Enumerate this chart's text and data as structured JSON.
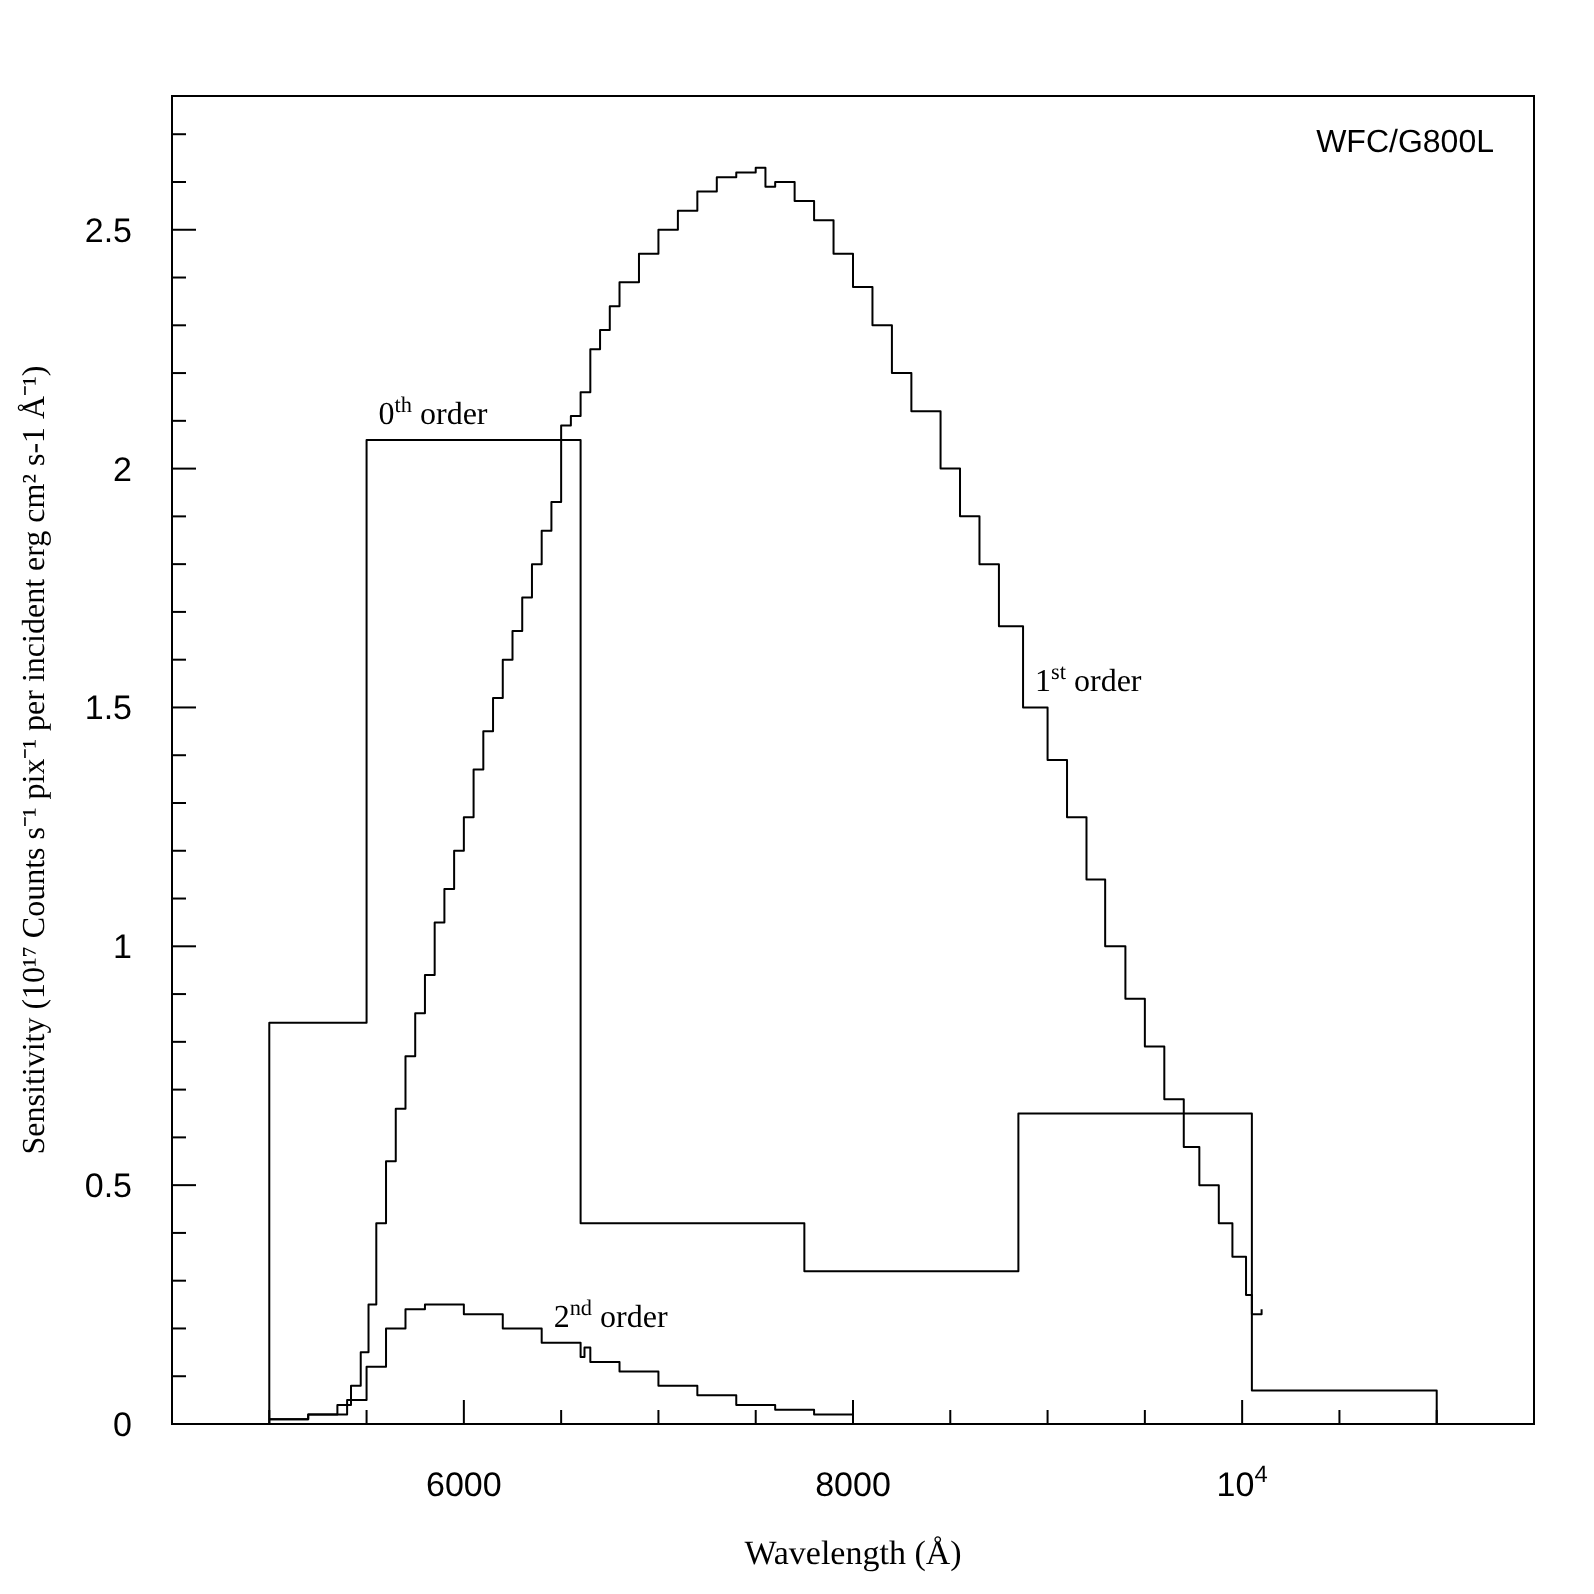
{
  "chart_data": {
    "type": "step",
    "title": "WFC/G800L",
    "xlabel": "Wavelength (Å)",
    "ylabel": "Sensitivity (10¹⁷ Counts s⁻¹ pix⁻¹ per incident erg cm² s-1 Å⁻¹)",
    "xlim": [
      4500,
      11500
    ],
    "xticks": [
      {
        "value": 5000,
        "label": null
      },
      {
        "value": 5500,
        "label": null
      },
      6000,
      {
        "value": 6500,
        "label": null
      },
      {
        "value": 7000,
        "label": null
      },
      {
        "value": 7500,
        "label": null
      },
      8000,
      {
        "value": 8500,
        "label": null
      },
      {
        "value": 9000,
        "label": null
      },
      {
        "value": 9500,
        "label": null
      },
      {
        "value": 10000,
        "label": "10$^{4}$"
      },
      {
        "value": 10500,
        "label": null
      },
      {
        "value": 11000,
        "label": null
      }
    ],
    "ylim": [
      0,
      2.78
    ],
    "yticks": [
      0,
      {
        "value": 0.1,
        "label": null
      },
      {
        "value": 0.2,
        "label": null
      },
      {
        "value": 0.3,
        "label": null
      },
      {
        "value": 0.4,
        "label": null
      },
      0.5,
      {
        "value": 0.6,
        "label": null
      },
      {
        "value": 0.7,
        "label": null
      },
      {
        "value": 0.8,
        "label": null
      },
      {
        "value": 0.9,
        "label": null
      },
      1,
      {
        "value": 1.1,
        "label": null
      },
      {
        "value": 1.2,
        "label": null
      },
      {
        "value": 1.3,
        "label": null
      },
      {
        "value": 1.4,
        "label": null
      },
      1.5,
      {
        "value": 1.6,
        "label": null
      },
      {
        "value": 1.7,
        "label": null
      },
      {
        "value": 1.8,
        "label": null
      },
      {
        "value": 1.9,
        "label": null
      },
      2,
      {
        "value": 2.1,
        "label": null
      },
      {
        "value": 2.2,
        "label": null
      },
      {
        "value": 2.3,
        "label": null
      },
      {
        "value": 2.4,
        "label": null
      },
      2.5,
      {
        "value": 2.6,
        "label": null
      },
      {
        "value": 2.7,
        "label": null
      }
    ],
    "grid": false,
    "marker": "none",
    "line_style": "solid",
    "series": [
      {
        "color": "#000000",
        "x": [
          5000,
          5000,
          5500,
          6600,
          7750,
          8850,
          10050,
          11000
        ],
        "values": [
          0,
          0.84,
          2.06,
          0.42,
          0.32,
          0.65,
          0.07,
          0
        ]
      },
      {
        "color": "#000000",
        "x": [
          5000,
          5200,
          5350,
          5420,
          5470,
          5510,
          5550,
          5600,
          5650,
          5700,
          5750,
          5800,
          5850,
          5900,
          5950,
          6000,
          6050,
          6100,
          6150,
          6200,
          6250,
          6300,
          6350,
          6400,
          6450,
          6500,
          6550,
          6600,
          6650,
          6700,
          6750,
          6800,
          6900,
          7000,
          7100,
          7200,
          7300,
          7400,
          7500,
          7550,
          7600,
          7700,
          7800,
          7900,
          8000,
          8100,
          8200,
          8300,
          8450,
          8550,
          8650,
          8750,
          8874,
          9000,
          9100,
          9200,
          9296,
          9400,
          9500,
          9600,
          9700,
          9780,
          9880,
          9950,
          10020,
          10050,
          10100
        ],
        "values": [
          0.01,
          0.02,
          0.04,
          0.08,
          0.15,
          0.25,
          0.42,
          0.55,
          0.66,
          0.77,
          0.86,
          0.94,
          1.05,
          1.12,
          1.2,
          1.27,
          1.37,
          1.45,
          1.52,
          1.6,
          1.66,
          1.73,
          1.8,
          1.87,
          1.93,
          2.09,
          2.11,
          2.16,
          2.25,
          2.29,
          2.34,
          2.39,
          2.45,
          2.5,
          2.54,
          2.58,
          2.61,
          2.62,
          2.63,
          2.59,
          2.6,
          2.56,
          2.52,
          2.45,
          2.38,
          2.3,
          2.2,
          2.12,
          2,
          1.9,
          1.8,
          1.67,
          1.5,
          1.39,
          1.27,
          1.14,
          1,
          0.89,
          0.79,
          0.68,
          0.58,
          0.5,
          0.42,
          0.35,
          0.27,
          0.23,
          0.24
        ]
      },
      {
        "color": "#000000",
        "x": [
          5000,
          5200,
          5400,
          5500,
          5600,
          5700,
          5800,
          5900,
          6000,
          6200,
          6400,
          6600,
          6620,
          6650,
          6800,
          7000,
          7200,
          7400,
          7600,
          7800,
          8000
        ],
        "values": [
          0.01,
          0.02,
          0.05,
          0.12,
          0.2,
          0.24,
          0.25,
          0.25,
          0.23,
          0.2,
          0.17,
          0.14,
          0.16,
          0.13,
          0.11,
          0.08,
          0.06,
          0.04,
          0.03,
          0.02,
          0
        ]
      }
    ],
    "annotations": [
      {
        "text": "0$^{th}$ order",
        "x": 5500,
        "y": 2.06
      },
      {
        "text": "1$^{st}$ order",
        "x": 8874,
        "y": 1.5
      },
      {
        "text": "2$^{nd}$ order",
        "x": 6400,
        "y": 0.17
      }
    ]
  }
}
